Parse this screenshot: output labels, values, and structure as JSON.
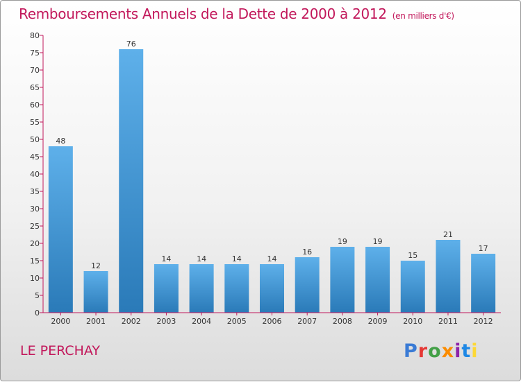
{
  "title": "Remboursements Annuels de la Dette de 2000 à 2012",
  "subtitle": "(en milliers d'€)",
  "commune": "LE PERCHAY",
  "brand": "Proxiti",
  "colors": {
    "title": "#c2185b",
    "bar_top": "#5eb0ea",
    "bar_bottom": "#2a7ab8",
    "axis": "#c2185b",
    "brand_letters": [
      "#3a7bd5",
      "#e53935",
      "#43a047",
      "#fb8c00",
      "#8e24aa",
      "#1e88e5",
      "#fdd835"
    ]
  },
  "chart_data": {
    "type": "bar",
    "categories": [
      "2000",
      "2001",
      "2002",
      "2003",
      "2004",
      "2005",
      "2006",
      "2007",
      "2008",
      "2009",
      "2010",
      "2011",
      "2012"
    ],
    "values": [
      48,
      12,
      76,
      14,
      14,
      14,
      14,
      16,
      19,
      19,
      15,
      21,
      17
    ],
    "ylim": [
      0,
      80
    ],
    "yticks": [
      0,
      5,
      10,
      15,
      20,
      25,
      30,
      35,
      40,
      45,
      50,
      55,
      60,
      65,
      70,
      75,
      80
    ],
    "grid": false,
    "legend": "none"
  }
}
